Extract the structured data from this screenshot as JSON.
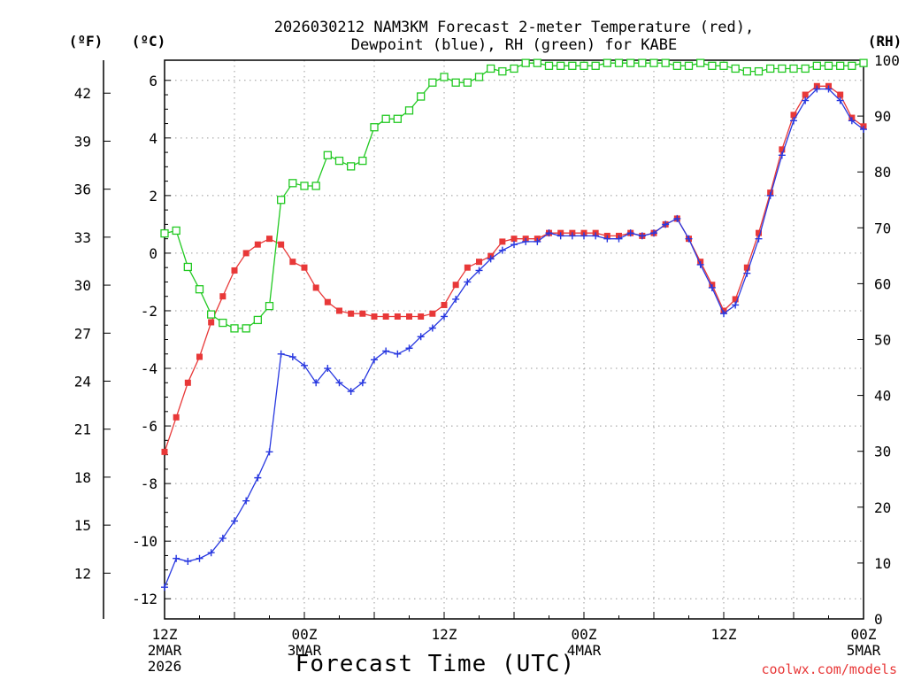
{
  "chart_data": {
    "type": "line",
    "title_line1": "2026030212 NAM3KM Forecast 2-meter Temperature (red),",
    "title_line2": "Dewpoint (blue), RH (green) for KABE",
    "xlabel": "Forecast Time (UTC)",
    "credit": "coolwx.com/models",
    "unit_f": "(ºF)",
    "unit_c": "(ºC)",
    "unit_rh": "(RH)",
    "x_hours": [
      0,
      1,
      2,
      3,
      4,
      5,
      6,
      7,
      8,
      9,
      10,
      11,
      12,
      13,
      14,
      15,
      16,
      17,
      18,
      19,
      20,
      21,
      22,
      23,
      24,
      25,
      26,
      27,
      28,
      29,
      30,
      31,
      32,
      33,
      34,
      35,
      36,
      37,
      38,
      39,
      40,
      41,
      42,
      43,
      44,
      45,
      46,
      47,
      48,
      49,
      50,
      51,
      52,
      53,
      54,
      55,
      56,
      57,
      58,
      59,
      60
    ],
    "xlim": [
      0,
      60
    ],
    "x_ticks": [
      {
        "hour": 0,
        "lines": [
          "12Z",
          "2MAR",
          "2026"
        ]
      },
      {
        "hour": 12,
        "lines": [
          "00Z",
          "3MAR"
        ]
      },
      {
        "hour": 24,
        "lines": [
          "12Z"
        ]
      },
      {
        "hour": 36,
        "lines": [
          "00Z",
          "4MAR"
        ]
      },
      {
        "hour": 48,
        "lines": [
          "12Z"
        ]
      },
      {
        "hour": 60,
        "lines": [
          "00Z",
          "5MAR"
        ]
      }
    ],
    "ylim_c": [
      -12.7,
      6.7
    ],
    "y_ticks_c": [
      "-12",
      "-10",
      "-8",
      "-6",
      "-4",
      "-2",
      "0",
      "2",
      "4",
      "6"
    ],
    "y_ticks_f": [
      "12",
      "15",
      "18",
      "21",
      "24",
      "27",
      "30",
      "33",
      "36",
      "39",
      "42"
    ],
    "ylim_rh": [
      0,
      100
    ],
    "y_ticks_rh": [
      "0",
      "10",
      "20",
      "30",
      "40",
      "50",
      "60",
      "70",
      "80",
      "90",
      "100"
    ],
    "series": [
      {
        "name": "2-meter Temperature",
        "unit": "C",
        "color": "#e83838",
        "marker": "filled-square",
        "values": [
          -6.9,
          -5.7,
          -4.5,
          -3.6,
          -2.4,
          -1.5,
          -0.6,
          0.0,
          0.3,
          0.5,
          0.3,
          -0.3,
          -0.5,
          -1.2,
          -1.7,
          -2.0,
          -2.1,
          -2.1,
          -2.2,
          -2.2,
          -2.2,
          -2.2,
          -2.2,
          -2.1,
          -1.8,
          -1.1,
          -0.5,
          -0.3,
          -0.1,
          0.4,
          0.5,
          0.5,
          0.5,
          0.7,
          0.7,
          0.7,
          0.7,
          0.7,
          0.6,
          0.6,
          0.7,
          0.6,
          0.7,
          1.0,
          1.2,
          0.5,
          -0.3,
          -1.1,
          -2.0,
          -1.6,
          -0.5,
          0.7,
          2.1,
          3.6,
          4.8,
          5.5,
          5.8,
          5.8,
          5.5,
          4.7,
          4.4
        ]
      },
      {
        "name": "Dewpoint",
        "unit": "C",
        "color": "#2838e0",
        "marker": "plus",
        "values": [
          -11.6,
          -10.6,
          -10.7,
          -10.6,
          -10.4,
          -9.9,
          -9.3,
          -8.6,
          -7.8,
          -6.9,
          -3.5,
          -3.6,
          -3.9,
          -4.5,
          -4.0,
          -4.5,
          -4.8,
          -4.5,
          -3.7,
          -3.4,
          -3.5,
          -3.3,
          -2.9,
          -2.6,
          -2.2,
          -1.6,
          -1.0,
          -0.6,
          -0.2,
          0.1,
          0.3,
          0.4,
          0.4,
          0.7,
          0.6,
          0.6,
          0.6,
          0.6,
          0.5,
          0.5,
          0.7,
          0.6,
          0.7,
          1.0,
          1.2,
          0.5,
          -0.4,
          -1.2,
          -2.1,
          -1.8,
          -0.7,
          0.5,
          2.0,
          3.4,
          4.6,
          5.3,
          5.7,
          5.7,
          5.3,
          4.6,
          4.3
        ]
      },
      {
        "name": "RH",
        "unit": "%",
        "color": "#22c922",
        "marker": "open-square",
        "values": [
          69,
          69.5,
          63,
          59,
          54.5,
          53,
          52,
          52,
          53.5,
          56,
          75,
          78,
          77.5,
          77.5,
          83,
          82,
          81,
          82,
          88,
          89.5,
          89.5,
          91,
          93.5,
          96,
          97,
          96,
          96,
          97,
          98.5,
          98,
          98.5,
          99.5,
          99.5,
          99,
          99,
          99,
          99,
          99,
          99.5,
          99.5,
          99.5,
          99.5,
          99.5,
          99.5,
          99,
          99,
          99.5,
          99,
          99,
          98.5,
          98,
          98,
          98.5,
          98.5,
          98.5,
          98.5,
          99,
          99,
          99,
          99,
          99.5
        ]
      }
    ]
  }
}
